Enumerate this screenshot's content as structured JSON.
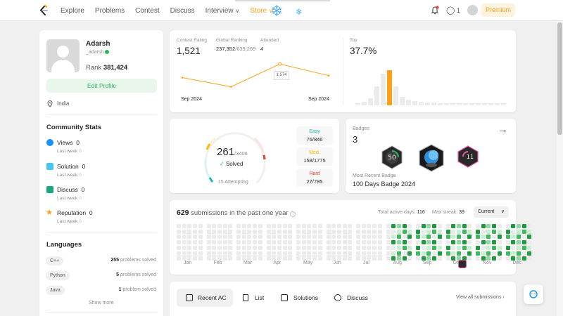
{
  "nav": {
    "links": [
      "Explore",
      "Problems",
      "Contest",
      "Discuss",
      "Interview",
      "Store"
    ],
    "fire_count": "1",
    "premium_label": "Premium"
  },
  "profile": {
    "name": "Adarsh",
    "username": "_adarsh",
    "rank_label": "Rank",
    "rank_value": "381,424",
    "edit_label": "Edit Profile",
    "location": "India"
  },
  "community": {
    "title": "Community Stats",
    "items": [
      {
        "label": "Views",
        "value": "0",
        "sub": "Last week",
        "sub_value": "0"
      },
      {
        "label": "Solution",
        "value": "0",
        "sub": "Last week",
        "sub_value": "0"
      },
      {
        "label": "Discuss",
        "value": "0",
        "sub": "Last week",
        "sub_value": "0"
      },
      {
        "label": "Reputation",
        "value": "0",
        "sub": "Last week",
        "sub_value": "0"
      }
    ]
  },
  "languages": {
    "title": "Languages",
    "items": [
      {
        "name": "C++",
        "count": "255",
        "suffix": "problems solved"
      },
      {
        "name": "Python",
        "count": "5",
        "suffix": "problems solved"
      },
      {
        "name": "Java",
        "count": "1",
        "suffix": "problem solved"
      }
    ],
    "show_more": "Show more"
  },
  "contest": {
    "rating_label": "Contest Rating",
    "rating_value": "1,521",
    "global_label": "Global Ranking",
    "global_value": "237,352",
    "global_total": "/639,269",
    "attended_label": "Attended",
    "attended_value": "4",
    "tooltip_value": "1,574",
    "x_start": "Sep 2024",
    "x_end": "Sep 2024",
    "top_label": "Top",
    "top_value": "37.7%"
  },
  "chart_data": {
    "type": "line",
    "title": "",
    "series": [
      {
        "values": [
          1512,
          1470,
          1574,
          1521
        ]
      }
    ],
    "xlabel": "",
    "ylabel": "",
    "ylim": [
      1440,
      1600
    ]
  },
  "solved": {
    "count": "261",
    "total": "/3406",
    "status": "Solved",
    "attempting": "15 Attempting",
    "easy_label": "Easy",
    "easy_value": "76/846",
    "medium_label": "Med.",
    "medium_value": "158/1775",
    "hard_label": "Hard",
    "hard_value": "27/785",
    "colors": {
      "easy": "#1cbaba",
      "medium": "#ffb700",
      "hard": "#f63737"
    }
  },
  "badges": {
    "title": "Badges",
    "count": "3",
    "recent_label": "Most Recent Badge",
    "recent_name": "100 Days Badge 2024",
    "badge_texts": [
      "50",
      "",
      "11"
    ]
  },
  "submissions": {
    "count": "629",
    "label": "submissions in the past one year",
    "active_label": "Total active days:",
    "active_value": "116",
    "streak_label": "Max streak:",
    "streak_value": "39",
    "select": "Current",
    "months": [
      "Jan",
      "Feb",
      "Mar",
      "Apr",
      "May",
      "Jun",
      "Jul",
      "Aug",
      "Sep",
      "Oct",
      "Nov",
      "Dec"
    ]
  },
  "tabs": {
    "items": [
      "Recent AC",
      "List",
      "Solutions",
      "Discuss"
    ],
    "view_all": "View all submissions"
  }
}
